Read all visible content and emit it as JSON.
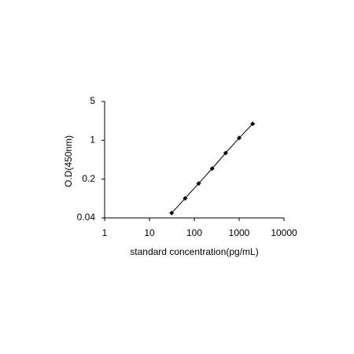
{
  "chart_data": {
    "type": "line",
    "x_label": "standard concentration(pg/mL)",
    "y_label": "O.D(450nm)",
    "x": [
      31.25,
      62.5,
      125,
      250,
      500,
      1000,
      2000
    ],
    "values": [
      0.049,
      0.09,
      0.167,
      0.31,
      0.59,
      1.1,
      1.98
    ],
    "color": "#000000",
    "xscale": "log",
    "yscale": "log",
    "xlim": [
      1,
      10000
    ],
    "ylim": [
      0.04,
      5
    ],
    "xticks": [
      1,
      10,
      100,
      1000,
      10000
    ],
    "yticks": [
      0.04,
      0.2,
      1,
      5
    ]
  }
}
